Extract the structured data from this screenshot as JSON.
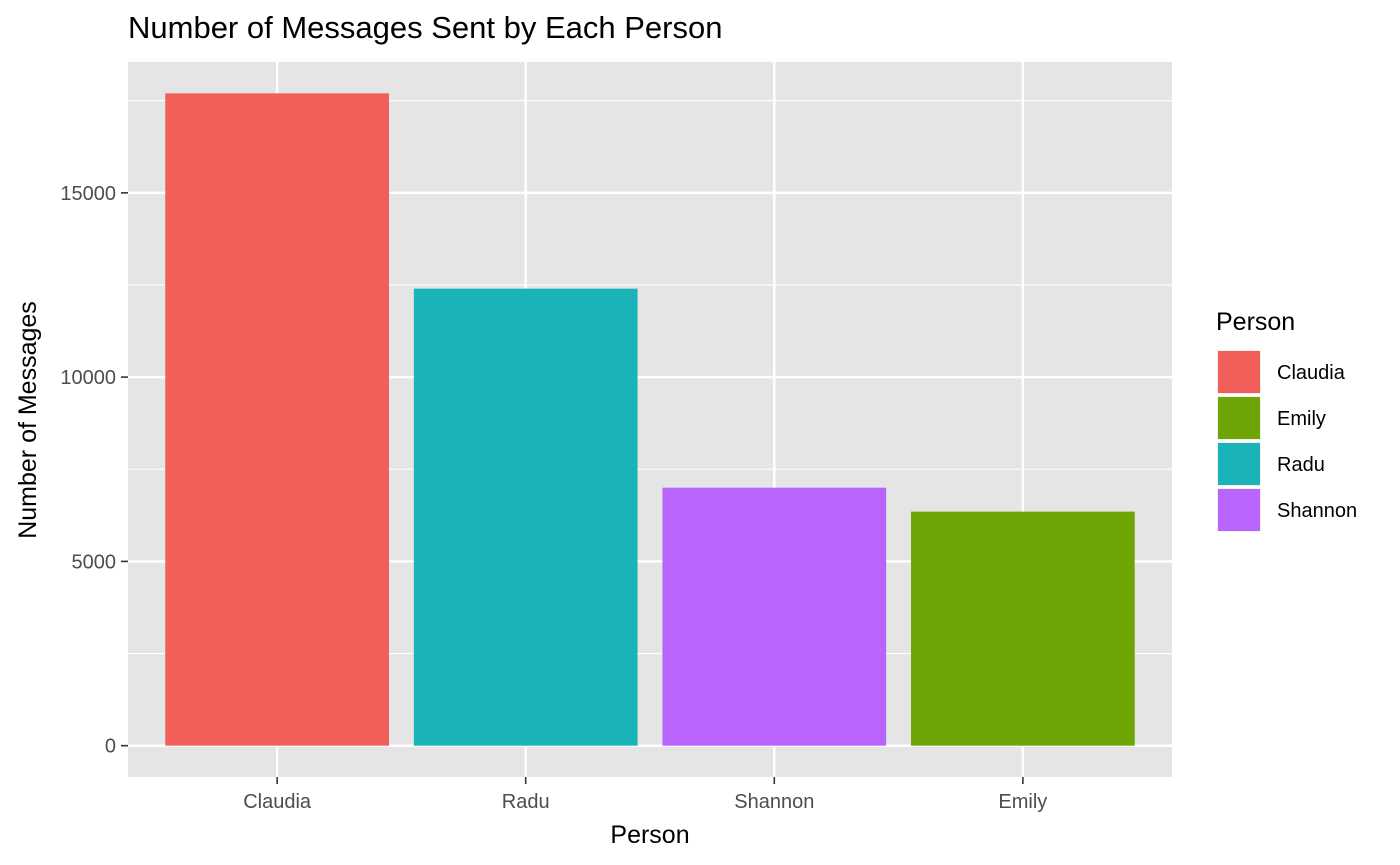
{
  "chart_data": {
    "type": "bar",
    "title": "Number of Messages Sent by Each Person",
    "xlabel": "Person",
    "ylabel": "Number of Messages",
    "categories": [
      "Claudia",
      "Radu",
      "Shannon",
      "Emily"
    ],
    "values": [
      17700,
      12400,
      7000,
      6350
    ],
    "ylim": [
      -850,
      18550
    ],
    "yticks": [
      0,
      5000,
      10000,
      15000
    ],
    "ytick_labels": [
      "0",
      "5000",
      "10000",
      "15000"
    ],
    "grid": true,
    "panel_background": "#e5e5e5",
    "grid_color": "#ffffff",
    "bar_colors": {
      "Claudia": "#f25f5a",
      "Emily": "#6ca504",
      "Radu": "#19b3b8",
      "Shannon": "#b964fd"
    },
    "legend": {
      "title": "Person",
      "placement": "right",
      "entries": [
        "Claudia",
        "Emily",
        "Radu",
        "Shannon"
      ]
    }
  }
}
